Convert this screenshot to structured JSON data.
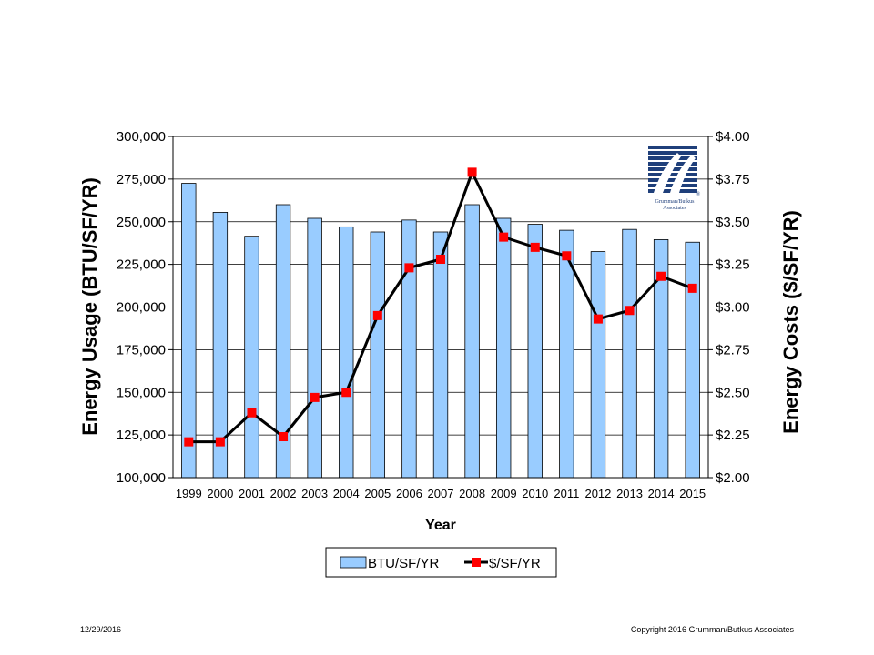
{
  "chart_data": {
    "type": "bar+line",
    "title": "",
    "categories": [
      "1999",
      "2000",
      "2001",
      "2002",
      "2003",
      "2004",
      "2005",
      "2006",
      "2007",
      "2008",
      "2009",
      "2010",
      "2011",
      "2012",
      "2013",
      "2014",
      "2015"
    ],
    "series": [
      {
        "name": "BTU/SF/YR",
        "type": "bar",
        "axis": "left",
        "color": "#99ccff",
        "values": [
          272500,
          255500,
          241500,
          260000,
          252000,
          247000,
          244000,
          251000,
          244000,
          260000,
          252000,
          248500,
          245000,
          232500,
          245500,
          239500,
          238000
        ]
      },
      {
        "name": "$/SF/YR",
        "type": "line",
        "axis": "right",
        "color": "#000000",
        "marker_color": "#ff0000",
        "values": [
          2.21,
          2.21,
          2.38,
          2.24,
          2.47,
          2.5,
          2.95,
          3.23,
          3.28,
          3.79,
          3.41,
          3.35,
          3.3,
          2.93,
          2.98,
          3.18,
          3.11
        ]
      }
    ],
    "xlabel": "Year",
    "ylabel_left": "Energy Usage (BTU/SF/YR)",
    "ylabel_right": "Energy Costs ($/SF/YR)",
    "ylim_left": [
      100000,
      300000
    ],
    "ylim_right": [
      2.0,
      4.0
    ],
    "left_ticks": [
      "100,000",
      "125,000",
      "150,000",
      "175,000",
      "200,000",
      "225,000",
      "250,000",
      "275,000",
      "300,000"
    ],
    "right_ticks": [
      "$2.00",
      "$2.25",
      "$2.50",
      "$2.75",
      "$3.00",
      "$3.25",
      "$3.50",
      "$3.75",
      "$4.00"
    ],
    "grid": true,
    "legend_position": "bottom-center"
  },
  "logo": {
    "name": "Grumman/Butkus Associates logo",
    "line1": "Grumman/Butkus",
    "line2": "Associates",
    "mark": "®",
    "color": "#1f3f7a"
  },
  "footer": {
    "date": "12/29/2016",
    "copyright": "Copyright 2016 Grumman/Butkus Associates"
  }
}
